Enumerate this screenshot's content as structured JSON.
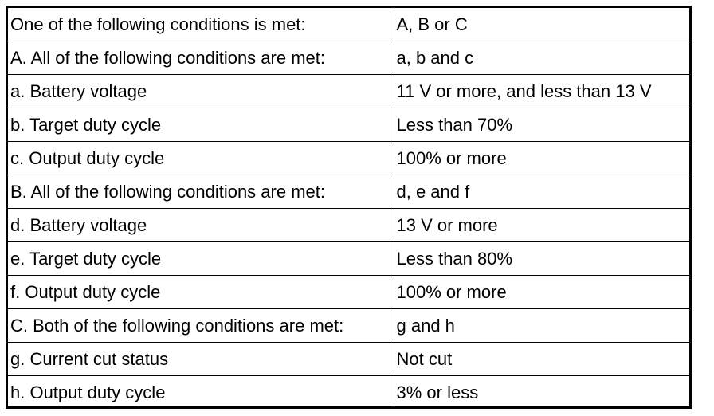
{
  "table": {
    "rows": [
      {
        "condition": "One of the following conditions is met:",
        "value": "A, B or C"
      },
      {
        "condition": "A. All of the following conditions are met:",
        "value": "a, b and c"
      },
      {
        "condition": "a. Battery voltage",
        "value": "11 V or more, and less than 13 V"
      },
      {
        "condition": "b. Target duty cycle",
        "value": "Less than 70%"
      },
      {
        "condition": "c. Output duty cycle",
        "value": "100% or more"
      },
      {
        "condition": "B. All of the following conditions are met:",
        "value": "d, e and f"
      },
      {
        "condition": "d. Battery voltage",
        "value": "13 V or more"
      },
      {
        "condition": "e. Target duty cycle",
        "value": "Less than 80%"
      },
      {
        "condition": "f. Output duty cycle",
        "value": "100% or more"
      },
      {
        "condition": "C. Both of the following conditions are met:",
        "value": "g and h"
      },
      {
        "condition": "g. Current cut status",
        "value": "Not cut"
      },
      {
        "condition": "h. Output duty cycle",
        "value": "3% or less"
      }
    ]
  }
}
